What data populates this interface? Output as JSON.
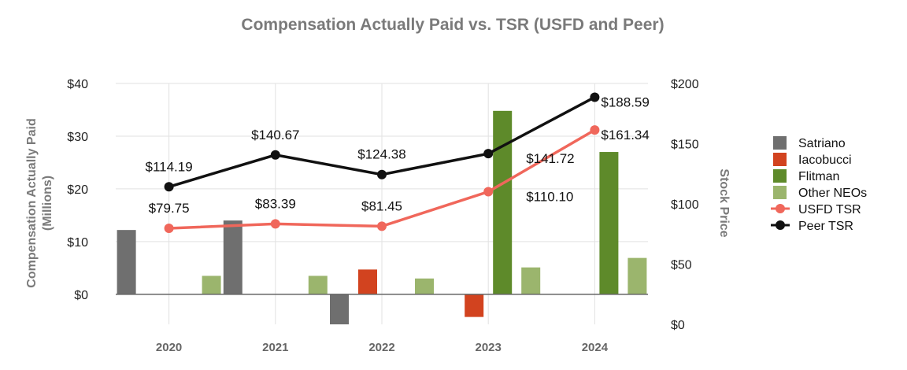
{
  "chart_data": {
    "type": "bar",
    "title": "Compensation Actually Paid vs. TSR (USFD and Peer)",
    "ylabel": "Compensation Actually Paid",
    "ylabel_units": "(Millions)",
    "y2label": "Stock Price",
    "categories": [
      "2020",
      "2021",
      "2022",
      "2023",
      "2024"
    ],
    "ylim": [
      -5.7,
      40
    ],
    "y_ticks": [
      0,
      10,
      20,
      30,
      40
    ],
    "y_tick_labels": [
      "$0",
      "$10",
      "$20",
      "$30",
      "$40"
    ],
    "y2lim": [
      0,
      200
    ],
    "y2_ticks": [
      0,
      50,
      100,
      150,
      200
    ],
    "y2_tick_labels": [
      "$0",
      "$50",
      "$100",
      "$150",
      "$200"
    ],
    "grid": true,
    "legend": "right",
    "bar_series": [
      {
        "name": "Satriano",
        "color": "#6f6f6f",
        "values": [
          12.2,
          14.0,
          -5.7,
          null,
          null
        ]
      },
      {
        "name": "Iacobucci",
        "color": "#d2431f",
        "values": [
          null,
          null,
          4.7,
          -4.3,
          null
        ]
      },
      {
        "name": "Flitman",
        "color": "#5e8a2a",
        "values": [
          null,
          null,
          null,
          34.8,
          27.0
        ]
      },
      {
        "name": "Other NEOs",
        "color": "#9bb56d",
        "values": [
          3.5,
          3.5,
          3.0,
          5.1,
          6.9
        ]
      }
    ],
    "line_series": [
      {
        "name": "USFD TSR",
        "color": "#f0675b",
        "values": [
          79.75,
          83.39,
          81.45,
          110.1,
          161.34
        ],
        "labels": [
          "$79.75",
          "$83.39",
          "$81.45",
          "$110.10",
          "$161.34"
        ]
      },
      {
        "name": "Peer TSR",
        "color": "#111111",
        "values": [
          114.19,
          140.67,
          124.38,
          141.72,
          188.59
        ],
        "labels": [
          "$114.19",
          "$140.67",
          "$124.38",
          "$141.72",
          "$188.59"
        ]
      }
    ]
  }
}
